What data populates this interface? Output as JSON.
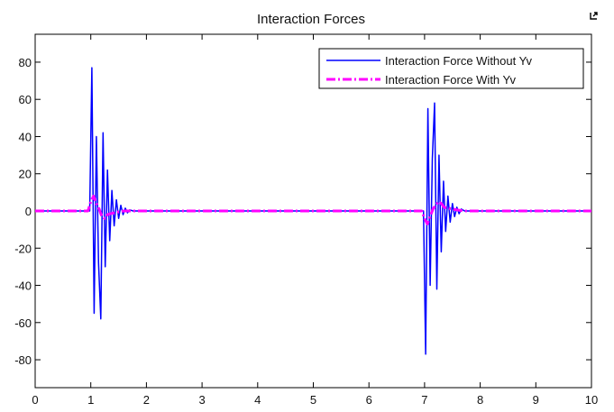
{
  "window": {
    "dock_icon": "dock-arrow-icon"
  },
  "chart_data": {
    "type": "line",
    "title": "Interaction Forces",
    "xlabel": "",
    "ylabel": "",
    "xlim": [
      0,
      10
    ],
    "ylim": [
      -95,
      95
    ],
    "xticks": [
      0,
      1,
      2,
      3,
      4,
      5,
      6,
      7,
      8,
      9,
      10
    ],
    "yticks": [
      80,
      60,
      40,
      20,
      0,
      -20,
      -40,
      -60,
      -80
    ],
    "grid": false,
    "legend_position": "top-right",
    "series": [
      {
        "name": "Interaction Force Without Yv",
        "color": "#0000ff",
        "style": "solid",
        "x": [
          0,
          0.98,
          1.02,
          1.06,
          1.1,
          1.14,
          1.18,
          1.22,
          1.26,
          1.3,
          1.34,
          1.38,
          1.42,
          1.46,
          1.5,
          1.54,
          1.58,
          1.62,
          1.66,
          1.7,
          1.76,
          1.84,
          6.98,
          7.02,
          7.06,
          7.1,
          7.14,
          7.18,
          7.22,
          7.26,
          7.3,
          7.34,
          7.38,
          7.42,
          7.46,
          7.5,
          7.54,
          7.58,
          7.62,
          7.66,
          7.72,
          7.82,
          10
        ],
        "y": [
          0,
          0,
          77,
          -55,
          40,
          -28,
          -58,
          42,
          -30,
          22,
          -16,
          11,
          -8,
          6,
          -4,
          3,
          -2,
          1.5,
          -1,
          0.6,
          0,
          0,
          0,
          -77,
          55,
          -40,
          28,
          58,
          -42,
          30,
          -22,
          16,
          -11,
          8,
          -6,
          4,
          -3,
          2,
          -1.5,
          1,
          0,
          0,
          0
        ]
      },
      {
        "name": "Interaction Force With Yv",
        "color": "#ff00ff",
        "style": "dashdot",
        "x": [
          0,
          0.95,
          1.0,
          1.05,
          1.1,
          1.15,
          1.2,
          1.25,
          1.3,
          1.35,
          1.42,
          1.5,
          1.6,
          1.7,
          6.95,
          7.0,
          7.05,
          7.1,
          7.15,
          7.2,
          7.25,
          7.3,
          7.35,
          7.42,
          7.5,
          7.6,
          7.7,
          10
        ],
        "y": [
          0,
          0,
          5,
          8,
          4,
          1,
          -3,
          -4,
          -2,
          -1.5,
          -1,
          -0.5,
          0,
          0,
          0,
          -4,
          -7,
          -3,
          1,
          3,
          5,
          4,
          2,
          1.5,
          1,
          0.5,
          0,
          0
        ]
      }
    ]
  }
}
